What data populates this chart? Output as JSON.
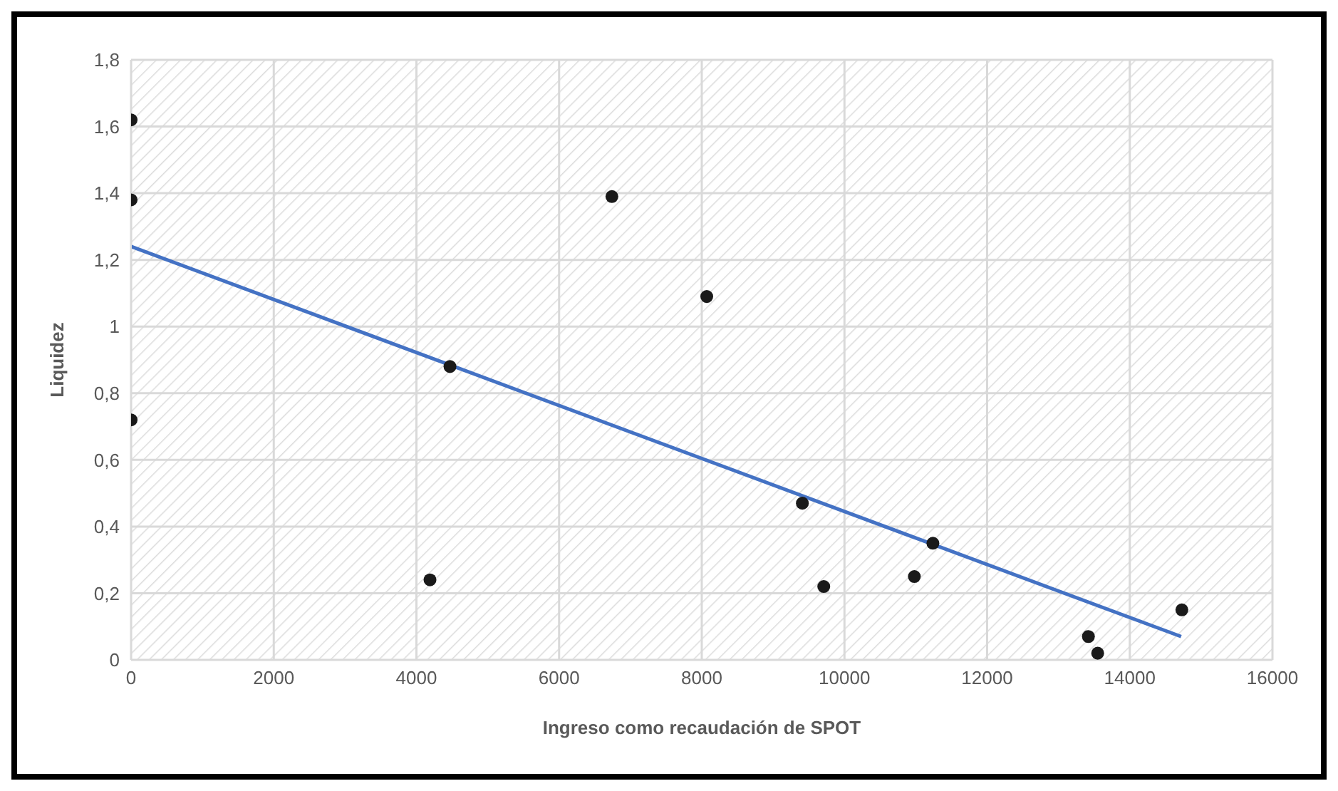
{
  "chart_data": {
    "type": "scatter",
    "xlabel": "Ingreso como recaudación de SPOT",
    "ylabel": "Liquidez",
    "xlim": [
      0,
      16000
    ],
    "xticks": [
      0,
      2000,
      4000,
      6000,
      8000,
      10000,
      12000,
      14000,
      16000
    ],
    "ylim": [
      0,
      1.8
    ],
    "yticks": [
      {
        "value": 0,
        "label": "0"
      },
      {
        "value": 0.2,
        "label": "0,2"
      },
      {
        "value": 0.4,
        "label": "0,4"
      },
      {
        "value": 0.6,
        "label": "0,6"
      },
      {
        "value": 0.8,
        "label": "0,8"
      },
      {
        "value": 1,
        "label": "1"
      },
      {
        "value": 1.2,
        "label": "1,2"
      },
      {
        "value": 1.4,
        "label": "1,4"
      },
      {
        "value": 1.6,
        "label": "1,6"
      },
      {
        "value": 1.8,
        "label": "1,8"
      }
    ],
    "grid": true,
    "series": [
      {
        "marker": "circle",
        "color": "#1a1a1a",
        "x": [
          0,
          0,
          0,
          4190,
          4470,
          6740,
          8070,
          9410,
          9710,
          10980,
          11240,
          13420,
          13550,
          14730
        ],
        "values": [
          1.62,
          1.38,
          0.72,
          0.24,
          0.88,
          1.39,
          1.09,
          0.47,
          0.22,
          0.25,
          0.35,
          0.07,
          0.02,
          0.15
        ]
      },
      {
        "type": "line",
        "color": "#4472c4",
        "x": [
          0,
          14720
        ],
        "values": [
          1.24,
          0.07
        ]
      }
    ]
  }
}
